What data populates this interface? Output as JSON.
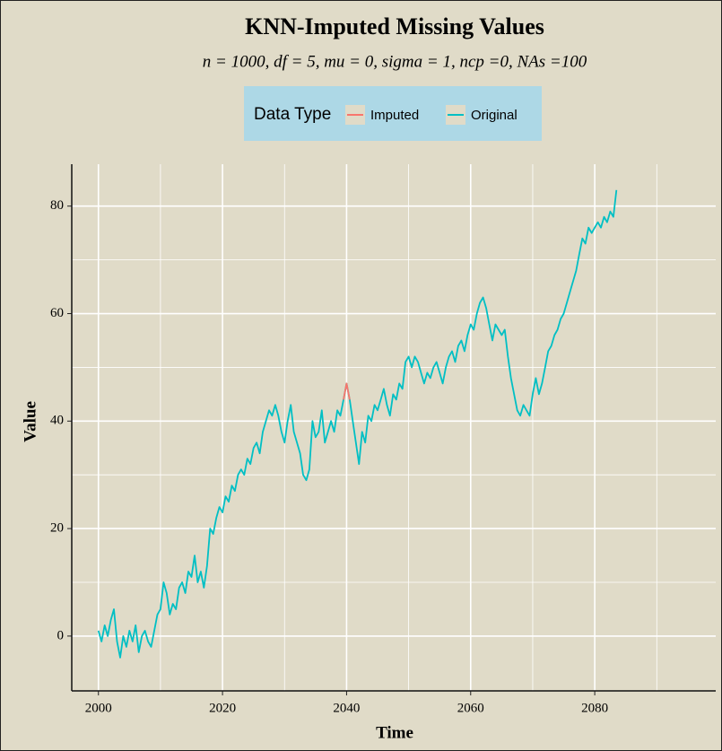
{
  "chart_data": {
    "type": "line",
    "title": "KNN-Imputed Missing Values",
    "subtitle": "n = 1000, df = 5, mu = 0, sigma = 1, ncp =0, NAs =100",
    "xlabel": "Time",
    "ylabel": "Value",
    "legend_title": "Data Type",
    "legend_position": "top",
    "xlim": [
      1995.7,
      2099.5
    ],
    "xticks": [
      2000,
      2020,
      2040,
      2060,
      2080
    ],
    "xminor": [
      2010,
      2030,
      2050,
      2070,
      2090
    ],
    "ylim": [
      -10.2,
      87.8
    ],
    "yticks": [
      0,
      20,
      40,
      60,
      80
    ],
    "yminor": [
      10,
      30,
      50,
      70
    ],
    "grid": true,
    "x": [
      2000,
      2000.5,
      2001,
      2001.5,
      2002,
      2002.5,
      2003,
      2003.5,
      2004,
      2004.5,
      2005,
      2005.5,
      2006,
      2006.5,
      2007,
      2007.5,
      2008,
      2008.5,
      2009,
      2009.5,
      2010,
      2010.5,
      2011,
      2011.5,
      2012,
      2012.5,
      2013,
      2013.5,
      2014,
      2014.5,
      2015,
      2015.5,
      2016,
      2016.5,
      2017,
      2017.5,
      2018,
      2018.5,
      2019,
      2019.5,
      2020,
      2020.5,
      2021,
      2021.5,
      2022,
      2022.5,
      2023,
      2023.5,
      2024,
      2024.5,
      2025,
      2025.5,
      2026,
      2026.5,
      2027,
      2027.5,
      2028,
      2028.5,
      2029,
      2029.5,
      2030,
      2030.5,
      2031,
      2031.5,
      2032,
      2032.5,
      2033,
      2033.5,
      2034,
      2034.5,
      2035,
      2035.5,
      2036,
      2036.5,
      2037,
      2037.5,
      2038,
      2038.5,
      2039,
      2039.5,
      2040,
      2040.5,
      2041,
      2041.5,
      2042,
      2042.5,
      2043,
      2043.5,
      2044,
      2044.5,
      2045,
      2045.5,
      2046,
      2046.5,
      2047,
      2047.5,
      2048,
      2048.5,
      2049,
      2049.5,
      2050,
      2050.5,
      2051,
      2051.5,
      2052,
      2052.5,
      2053,
      2053.5,
      2054,
      2054.5,
      2055,
      2055.5,
      2056,
      2056.5,
      2057,
      2057.5,
      2058,
      2058.5,
      2059,
      2059.5,
      2060,
      2060.5,
      2061,
      2061.5,
      2062,
      2062.5,
      2063,
      2063.5,
      2064,
      2064.5,
      2065,
      2065.5,
      2066,
      2066.5,
      2067,
      2067.5,
      2068,
      2068.5,
      2069,
      2069.5,
      2070,
      2070.5,
      2071,
      2071.5,
      2072,
      2072.5,
      2073,
      2073.5,
      2074,
      2074.5,
      2075,
      2075.5,
      2076,
      2076.5,
      2077,
      2077.5,
      2078,
      2078.5,
      2079,
      2079.5,
      2080,
      2080.5,
      2081,
      2081.5,
      2082,
      2082.5,
      2083,
      2083.5
    ],
    "series": [
      {
        "name": "Imputed",
        "color": "#f8766d",
        "x": [
          2039.5,
          2040,
          2040.5
        ],
        "values": [
          44,
          47,
          44
        ]
      },
      {
        "name": "Original",
        "color": "#00bfc4",
        "values": [
          1,
          -1,
          2,
          0,
          3,
          5,
          -1,
          -4,
          0,
          -2,
          1,
          -1,
          2,
          -3,
          0,
          1,
          -1,
          -2,
          1,
          4,
          5,
          10,
          8,
          4,
          6,
          5,
          9,
          10,
          8,
          12,
          11,
          15,
          10,
          12,
          9,
          13,
          20,
          19,
          22,
          24,
          23,
          26,
          25,
          28,
          27,
          30,
          31,
          30,
          33,
          32,
          35,
          36,
          34,
          38,
          40,
          42,
          41,
          43,
          41,
          38,
          36,
          40,
          43,
          38,
          36,
          34,
          30,
          29,
          31,
          40,
          37,
          38,
          42,
          36,
          38,
          40,
          38,
          42,
          41,
          44,
          47,
          44,
          40,
          36,
          32,
          38,
          36,
          41,
          40,
          43,
          42,
          44,
          46,
          43,
          41,
          45,
          44,
          47,
          46,
          51,
          52,
          50,
          52,
          51,
          49,
          47,
          49,
          48,
          50,
          51,
          49,
          47,
          50,
          52,
          53,
          51,
          54,
          55,
          53,
          56,
          58,
          57,
          60,
          62,
          63,
          61,
          58,
          55,
          58,
          57,
          56,
          57,
          52,
          48,
          45,
          42,
          41,
          43,
          42,
          41,
          45,
          48,
          45,
          47,
          50,
          53,
          54,
          56,
          57,
          59,
          60,
          62,
          64,
          66,
          68,
          71,
          74,
          73,
          76,
          75,
          76,
          77,
          76,
          78,
          77,
          79,
          78,
          83
        ]
      }
    ]
  }
}
